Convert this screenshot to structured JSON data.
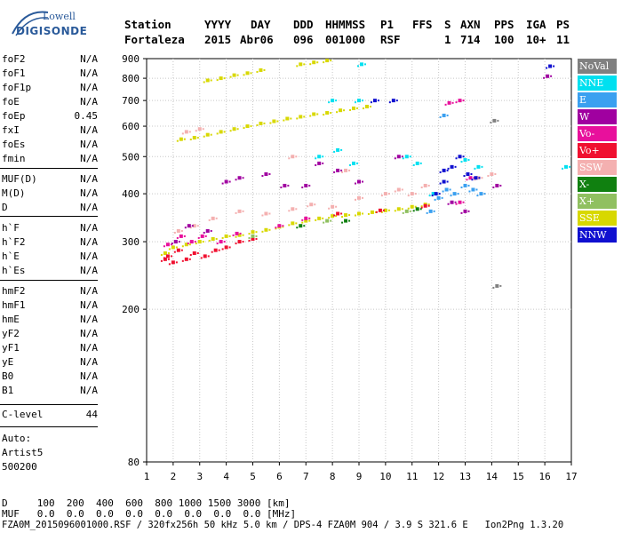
{
  "logo": {
    "line1": "Lowell",
    "line2": "DIGISONDE"
  },
  "header": {
    "labels": [
      "Station",
      "YYYY",
      "DAY",
      "DDD",
      "HHMMSS",
      "P1",
      "FFS",
      "S",
      "AXN",
      "PPS",
      "IGA",
      "PS"
    ],
    "values": [
      "Fortaleza",
      "2015",
      "Abr06",
      "096",
      "001000",
      "RSF",
      "",
      "1",
      "714",
      "100",
      "10+",
      "11"
    ]
  },
  "params": [
    {
      "name": "foF2",
      "value": "N/A"
    },
    {
      "name": "foF1",
      "value": "N/A"
    },
    {
      "name": "foF1p",
      "value": "N/A"
    },
    {
      "name": "foE",
      "value": "N/A"
    },
    {
      "name": "foEp",
      "value": "0.45"
    },
    {
      "name": "fxI",
      "value": "N/A"
    },
    {
      "name": "foEs",
      "value": "N/A"
    },
    {
      "name": "fmin",
      "value": "N/A"
    },
    {
      "name": "MUF(D)",
      "value": "N/A"
    },
    {
      "name": "M(D)",
      "value": "N/A"
    },
    {
      "name": "D",
      "value": "N/A"
    },
    {
      "name": "h`F",
      "value": "N/A"
    },
    {
      "name": "h`F2",
      "value": "N/A"
    },
    {
      "name": "h`E",
      "value": "N/A"
    },
    {
      "name": "h`Es",
      "value": "N/A"
    },
    {
      "name": "hmF2",
      "value": "N/A"
    },
    {
      "name": "hmF1",
      "value": "N/A"
    },
    {
      "name": "hmE",
      "value": "N/A"
    },
    {
      "name": "yF2",
      "value": "N/A"
    },
    {
      "name": "yF1",
      "value": "N/A"
    },
    {
      "name": "yE",
      "value": "N/A"
    },
    {
      "name": "B0",
      "value": "N/A"
    },
    {
      "name": "B1",
      "value": "N/A"
    },
    {
      "name": "C-level",
      "value": "44"
    }
  ],
  "auto": {
    "line1": "Auto:",
    "line2": "Artist5",
    "line3": "500200"
  },
  "legend": [
    {
      "label": "NoVal",
      "color": "#808080"
    },
    {
      "label": "NNE",
      "color": "#00e0f0"
    },
    {
      "label": "E",
      "color": "#3aa0f0"
    },
    {
      "label": "W",
      "color": "#a000a0"
    },
    {
      "label": "Vo-",
      "color": "#e8109c"
    },
    {
      "label": "Vo+",
      "color": "#f01030"
    },
    {
      "label": "SSW",
      "color": "#f4b0b0"
    },
    {
      "label": "X-",
      "color": "#108010"
    },
    {
      "label": "X+",
      "color": "#90c060"
    },
    {
      "label": "SSE",
      "color": "#d8d800"
    },
    {
      "label": "NNW",
      "color": "#1010d0"
    }
  ],
  "bottom": {
    "d_label": "D",
    "d_values": "100  200  400  600  800 1000 1500 3000 [km]",
    "muf_label": "MUF",
    "muf_values": "0.0  0.0  0.0  0.0  0.0  0.0  0.0  0.0 [MHz]"
  },
  "footer": "FZA0M_2015096001000.RSF / 320fx256h 50 kHz 5.0 km / DPS-4 FZA0M 904 / 3.9 S 321.6 E   Ion2Png 1.3.20",
  "chart_data": {
    "type": "scatter",
    "xlim": [
      1,
      17
    ],
    "ylim": [
      80,
      900
    ],
    "x_ticks": [
      1,
      2,
      3,
      4,
      5,
      6,
      7,
      8,
      9,
      10,
      11,
      12,
      13,
      14,
      15,
      16,
      17
    ],
    "y_ticks": [
      80,
      200,
      300,
      400,
      500,
      600,
      700,
      800,
      900
    ],
    "y_scale": "log",
    "grid": true,
    "legend_position": "right",
    "series": [
      {
        "name": "SSE",
        "color": "#d8d800",
        "points": [
          [
            1.7,
            280
          ],
          [
            2.0,
            290
          ],
          [
            2.5,
            295
          ],
          [
            3.0,
            300
          ],
          [
            3.5,
            305
          ],
          [
            4.0,
            310
          ],
          [
            4.5,
            312
          ],
          [
            5.0,
            318
          ],
          [
            5.5,
            322
          ],
          [
            6.0,
            328
          ],
          [
            6.5,
            335
          ],
          [
            7.0,
            340
          ],
          [
            7.5,
            345
          ],
          [
            8.0,
            350
          ],
          [
            8.5,
            352
          ],
          [
            9.0,
            355
          ],
          [
            9.5,
            358
          ],
          [
            10.0,
            362
          ],
          [
            10.5,
            365
          ],
          [
            11.0,
            370
          ],
          [
            11.5,
            375
          ],
          [
            2.3,
            555
          ],
          [
            2.8,
            560
          ],
          [
            3.3,
            570
          ],
          [
            3.8,
            580
          ],
          [
            4.3,
            590
          ],
          [
            4.8,
            600
          ],
          [
            5.3,
            610
          ],
          [
            5.8,
            618
          ],
          [
            6.3,
            628
          ],
          [
            6.8,
            635
          ],
          [
            7.3,
            645
          ],
          [
            7.8,
            650
          ],
          [
            8.3,
            660
          ],
          [
            8.8,
            668
          ],
          [
            9.3,
            675
          ],
          [
            3.3,
            790
          ],
          [
            3.8,
            800
          ],
          [
            4.3,
            815
          ],
          [
            4.8,
            825
          ],
          [
            5.3,
            840
          ],
          [
            6.8,
            870
          ],
          [
            7.3,
            880
          ],
          [
            7.8,
            890
          ]
        ]
      },
      {
        "name": "SSW",
        "color": "#f4b0b0",
        "points": [
          [
            2.2,
            320
          ],
          [
            2.8,
            330
          ],
          [
            3.5,
            345
          ],
          [
            4.5,
            360
          ],
          [
            5.5,
            355
          ],
          [
            6.5,
            365
          ],
          [
            7.2,
            375
          ],
          [
            8.0,
            370
          ],
          [
            9.0,
            390
          ],
          [
            10.0,
            400
          ],
          [
            10.5,
            410
          ],
          [
            11.0,
            400
          ],
          [
            11.5,
            420
          ],
          [
            13.5,
            440
          ],
          [
            14.0,
            450
          ],
          [
            2.5,
            580
          ],
          [
            3.0,
            590
          ],
          [
            6.5,
            500
          ],
          [
            8.5,
            460
          ]
        ]
      },
      {
        "name": "Vo+",
        "color": "#f01030",
        "points": [
          [
            1.7,
            270
          ],
          [
            1.8,
            275
          ],
          [
            2.0,
            265
          ],
          [
            2.2,
            285
          ],
          [
            2.5,
            270
          ],
          [
            2.8,
            280
          ],
          [
            3.2,
            275
          ],
          [
            3.6,
            285
          ],
          [
            4.0,
            290
          ],
          [
            4.5,
            300
          ],
          [
            5.0,
            305
          ],
          [
            8.2,
            355
          ],
          [
            9.8,
            362
          ],
          [
            11.5,
            372
          ]
        ]
      },
      {
        "name": "Vo-",
        "color": "#e8109c",
        "points": [
          [
            1.8,
            295
          ],
          [
            2.3,
            310
          ],
          [
            2.7,
            300
          ],
          [
            3.1,
            310
          ],
          [
            3.8,
            300
          ],
          [
            4.4,
            315
          ],
          [
            6.0,
            330
          ],
          [
            7.0,
            345
          ],
          [
            12.8,
            380
          ],
          [
            13.2,
            440
          ],
          [
            12.4,
            690
          ],
          [
            12.8,
            700
          ]
        ]
      },
      {
        "name": "W",
        "color": "#a000a0",
        "points": [
          [
            2.1,
            300
          ],
          [
            2.6,
            330
          ],
          [
            3.3,
            320
          ],
          [
            4.0,
            430
          ],
          [
            4.5,
            440
          ],
          [
            5.5,
            450
          ],
          [
            6.2,
            420
          ],
          [
            7.0,
            420
          ],
          [
            7.5,
            480
          ],
          [
            8.2,
            460
          ],
          [
            9.0,
            430
          ],
          [
            10.5,
            500
          ],
          [
            12.5,
            380
          ],
          [
            13.0,
            360
          ],
          [
            14.2,
            420
          ],
          [
            16.1,
            810
          ]
        ]
      },
      {
        "name": "NNE",
        "color": "#00e0f0",
        "points": [
          [
            7.5,
            500
          ],
          [
            8.0,
            700
          ],
          [
            8.2,
            520
          ],
          [
            8.8,
            480
          ],
          [
            9.0,
            700
          ],
          [
            9.1,
            870
          ],
          [
            10.8,
            500
          ],
          [
            11.2,
            480
          ],
          [
            11.8,
            400
          ],
          [
            13.0,
            490
          ],
          [
            13.5,
            470
          ],
          [
            16.8,
            470
          ]
        ]
      },
      {
        "name": "E",
        "color": "#3aa0f0",
        "points": [
          [
            12.0,
            390
          ],
          [
            12.3,
            410
          ],
          [
            12.6,
            400
          ],
          [
            13.0,
            420
          ],
          [
            13.3,
            410
          ],
          [
            13.6,
            400
          ],
          [
            11.7,
            360
          ],
          [
            12.2,
            640
          ]
        ]
      },
      {
        "name": "NNW",
        "color": "#1010d0",
        "points": [
          [
            12.2,
            430
          ],
          [
            12.5,
            470
          ],
          [
            12.8,
            500
          ],
          [
            13.1,
            450
          ],
          [
            13.4,
            440
          ],
          [
            11.9,
            400
          ],
          [
            9.6,
            700
          ],
          [
            10.3,
            700
          ],
          [
            12.2,
            460
          ],
          [
            16.2,
            860
          ]
        ]
      },
      {
        "name": "X-",
        "color": "#108010",
        "points": [
          [
            6.8,
            330
          ],
          [
            8.5,
            340
          ],
          [
            11.2,
            365
          ]
        ]
      },
      {
        "name": "X+",
        "color": "#90c060",
        "points": [
          [
            5.0,
            310
          ],
          [
            7.8,
            340
          ],
          [
            10.8,
            360
          ]
        ]
      },
      {
        "name": "NoVal",
        "color": "#808080",
        "points": [
          [
            14.1,
            620
          ],
          [
            14.2,
            230
          ]
        ]
      }
    ]
  }
}
